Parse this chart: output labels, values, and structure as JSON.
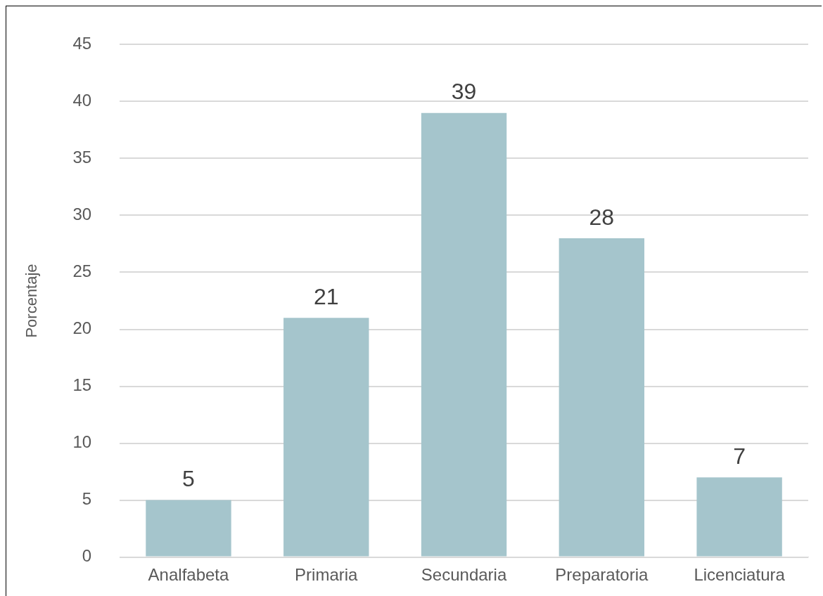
{
  "chart_data": {
    "type": "bar",
    "ylabel": "Porcentaje",
    "categories": [
      "Analfabeta",
      "Primaria",
      "Secundaria",
      "Preparatoria",
      "Licenciatura"
    ],
    "values": [
      5,
      21,
      39,
      28,
      7
    ],
    "color": "#a5c5cc",
    "ylim": [
      0,
      45
    ],
    "yticks": [
      0,
      5,
      10,
      15,
      20,
      25,
      30,
      35,
      40,
      45
    ],
    "grid": "y",
    "data_labels": true,
    "legend": false
  }
}
